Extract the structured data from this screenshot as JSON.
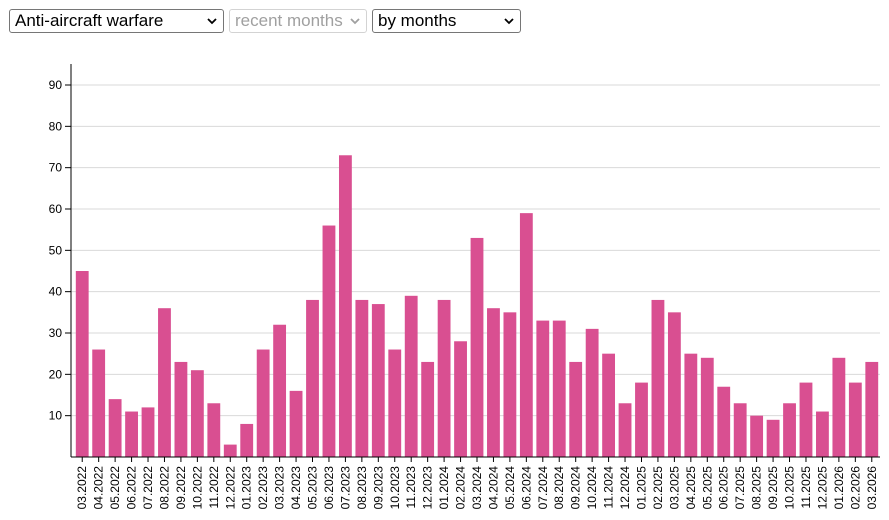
{
  "controls": {
    "category_select": "Anti-aircraft warfare",
    "period_select": "recent months",
    "grouping_select": "by months"
  },
  "colors": {
    "bar": "#d94f91",
    "grid": "#d9d9d9",
    "axis": "#000000"
  },
  "icons": {
    "dropdown": "chevron-down-icon"
  },
  "chart_data": {
    "type": "bar",
    "categories": [
      "03.2022",
      "04.2022",
      "05.2022",
      "06.2022",
      "07.2022",
      "08.2022",
      "09.2022",
      "10.2022",
      "11.2022",
      "12.2022",
      "01.2023",
      "02.2023",
      "03.2023",
      "04.2023",
      "05.2023",
      "06.2023",
      "07.2023",
      "08.2023",
      "09.2023",
      "10.2023",
      "11.2023",
      "12.2023",
      "01.2024",
      "02.2024",
      "03.2024",
      "04.2024",
      "05.2024",
      "06.2024",
      "07.2024",
      "08.2024",
      "09.2024",
      "10.2024",
      "11.2024",
      "12.2024",
      "01.2025",
      "02.2025",
      "03.2025",
      "04.2025",
      "05.2025",
      "06.2025",
      "07.2025",
      "08.2025",
      "09.2025",
      "10.2025",
      "11.2025",
      "12.2025",
      "01.2026",
      "02.2026",
      "03.2026"
    ],
    "values": [
      45,
      26,
      14,
      11,
      12,
      36,
      23,
      21,
      13,
      3,
      8,
      26,
      32,
      16,
      38,
      56,
      73,
      38,
      37,
      26,
      39,
      23,
      38,
      28,
      53,
      36,
      35,
      59,
      33,
      33,
      23,
      31,
      25,
      13,
      18,
      38,
      35,
      25,
      24,
      17,
      13,
      10,
      9,
      13,
      18,
      11,
      24,
      18,
      23
    ],
    "ylim": [
      0,
      95
    ],
    "yticks": [
      10,
      20,
      30,
      40,
      50,
      60,
      70,
      80,
      90
    ],
    "grid": true
  }
}
